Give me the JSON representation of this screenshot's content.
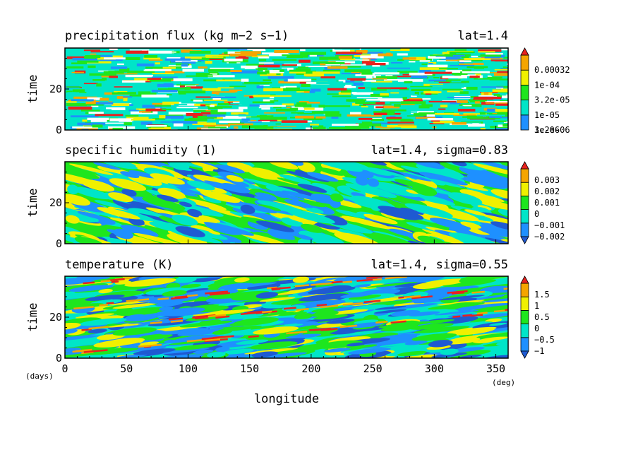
{
  "colors": {
    "white": "#ffffff",
    "blue": "#1e90ff",
    "cyan": "#00e5c8",
    "green": "#1ee61e",
    "yellow": "#f0f000",
    "orange": "#f5a500",
    "red": "#e8221e",
    "dark_blue": "#1e5ad2"
  },
  "chart_data": [
    {
      "type": "heatmap",
      "title": "precipitation flux (kg m−2 s−1)",
      "subtitle": "lat=1.4",
      "ylabel": "time",
      "xlim": [
        0,
        360
      ],
      "ylim": [
        0,
        40
      ],
      "yticks": [
        "0",
        "20"
      ],
      "colorbar": {
        "labels": [
          "0.00032",
          "1e-04",
          "3.2e-05",
          "1e-05",
          "3.2e-06",
          "1e-06"
        ],
        "colors": [
          "#1e90ff",
          "#00e5c8",
          "#1ee61e",
          "#f0f000",
          "#f5a500",
          "#e8221e"
        ],
        "extend": "max"
      }
    },
    {
      "type": "heatmap",
      "title": "specific humidity (1)",
      "subtitle": "lat=1.4, sigma=0.83",
      "ylabel": "time",
      "xlim": [
        0,
        360
      ],
      "ylim": [
        0,
        40
      ],
      "yticks": [
        "0",
        "20"
      ],
      "colorbar": {
        "labels": [
          "0.003",
          "0.002",
          "0.001",
          "0",
          "−0.001",
          "−0.002"
        ],
        "colors": [
          "#1e5ad2",
          "#1e90ff",
          "#00e5c8",
          "#1ee61e",
          "#f0f000",
          "#f5a500",
          "#e8221e"
        ],
        "extend": "both"
      }
    },
    {
      "type": "heatmap",
      "title": "temperature (K)",
      "subtitle": "lat=1.4, sigma=0.55",
      "ylabel": "time",
      "xlabel": "longitude",
      "xlim": [
        0,
        360
      ],
      "ylim": [
        0,
        40
      ],
      "yticks": [
        "0",
        "20"
      ],
      "xticks": [
        "0",
        "50",
        "100",
        "150",
        "200",
        "250",
        "300",
        "350"
      ],
      "xunit": "(deg)",
      "yunit": "(days)",
      "colorbar": {
        "labels": [
          "1.5",
          "1",
          "0.5",
          "0",
          "−0.5",
          "−1"
        ],
        "colors": [
          "#1e5ad2",
          "#1e90ff",
          "#00e5c8",
          "#1ee61e",
          "#f0f000",
          "#f5a500",
          "#e8221e"
        ],
        "extend": "both"
      }
    }
  ]
}
